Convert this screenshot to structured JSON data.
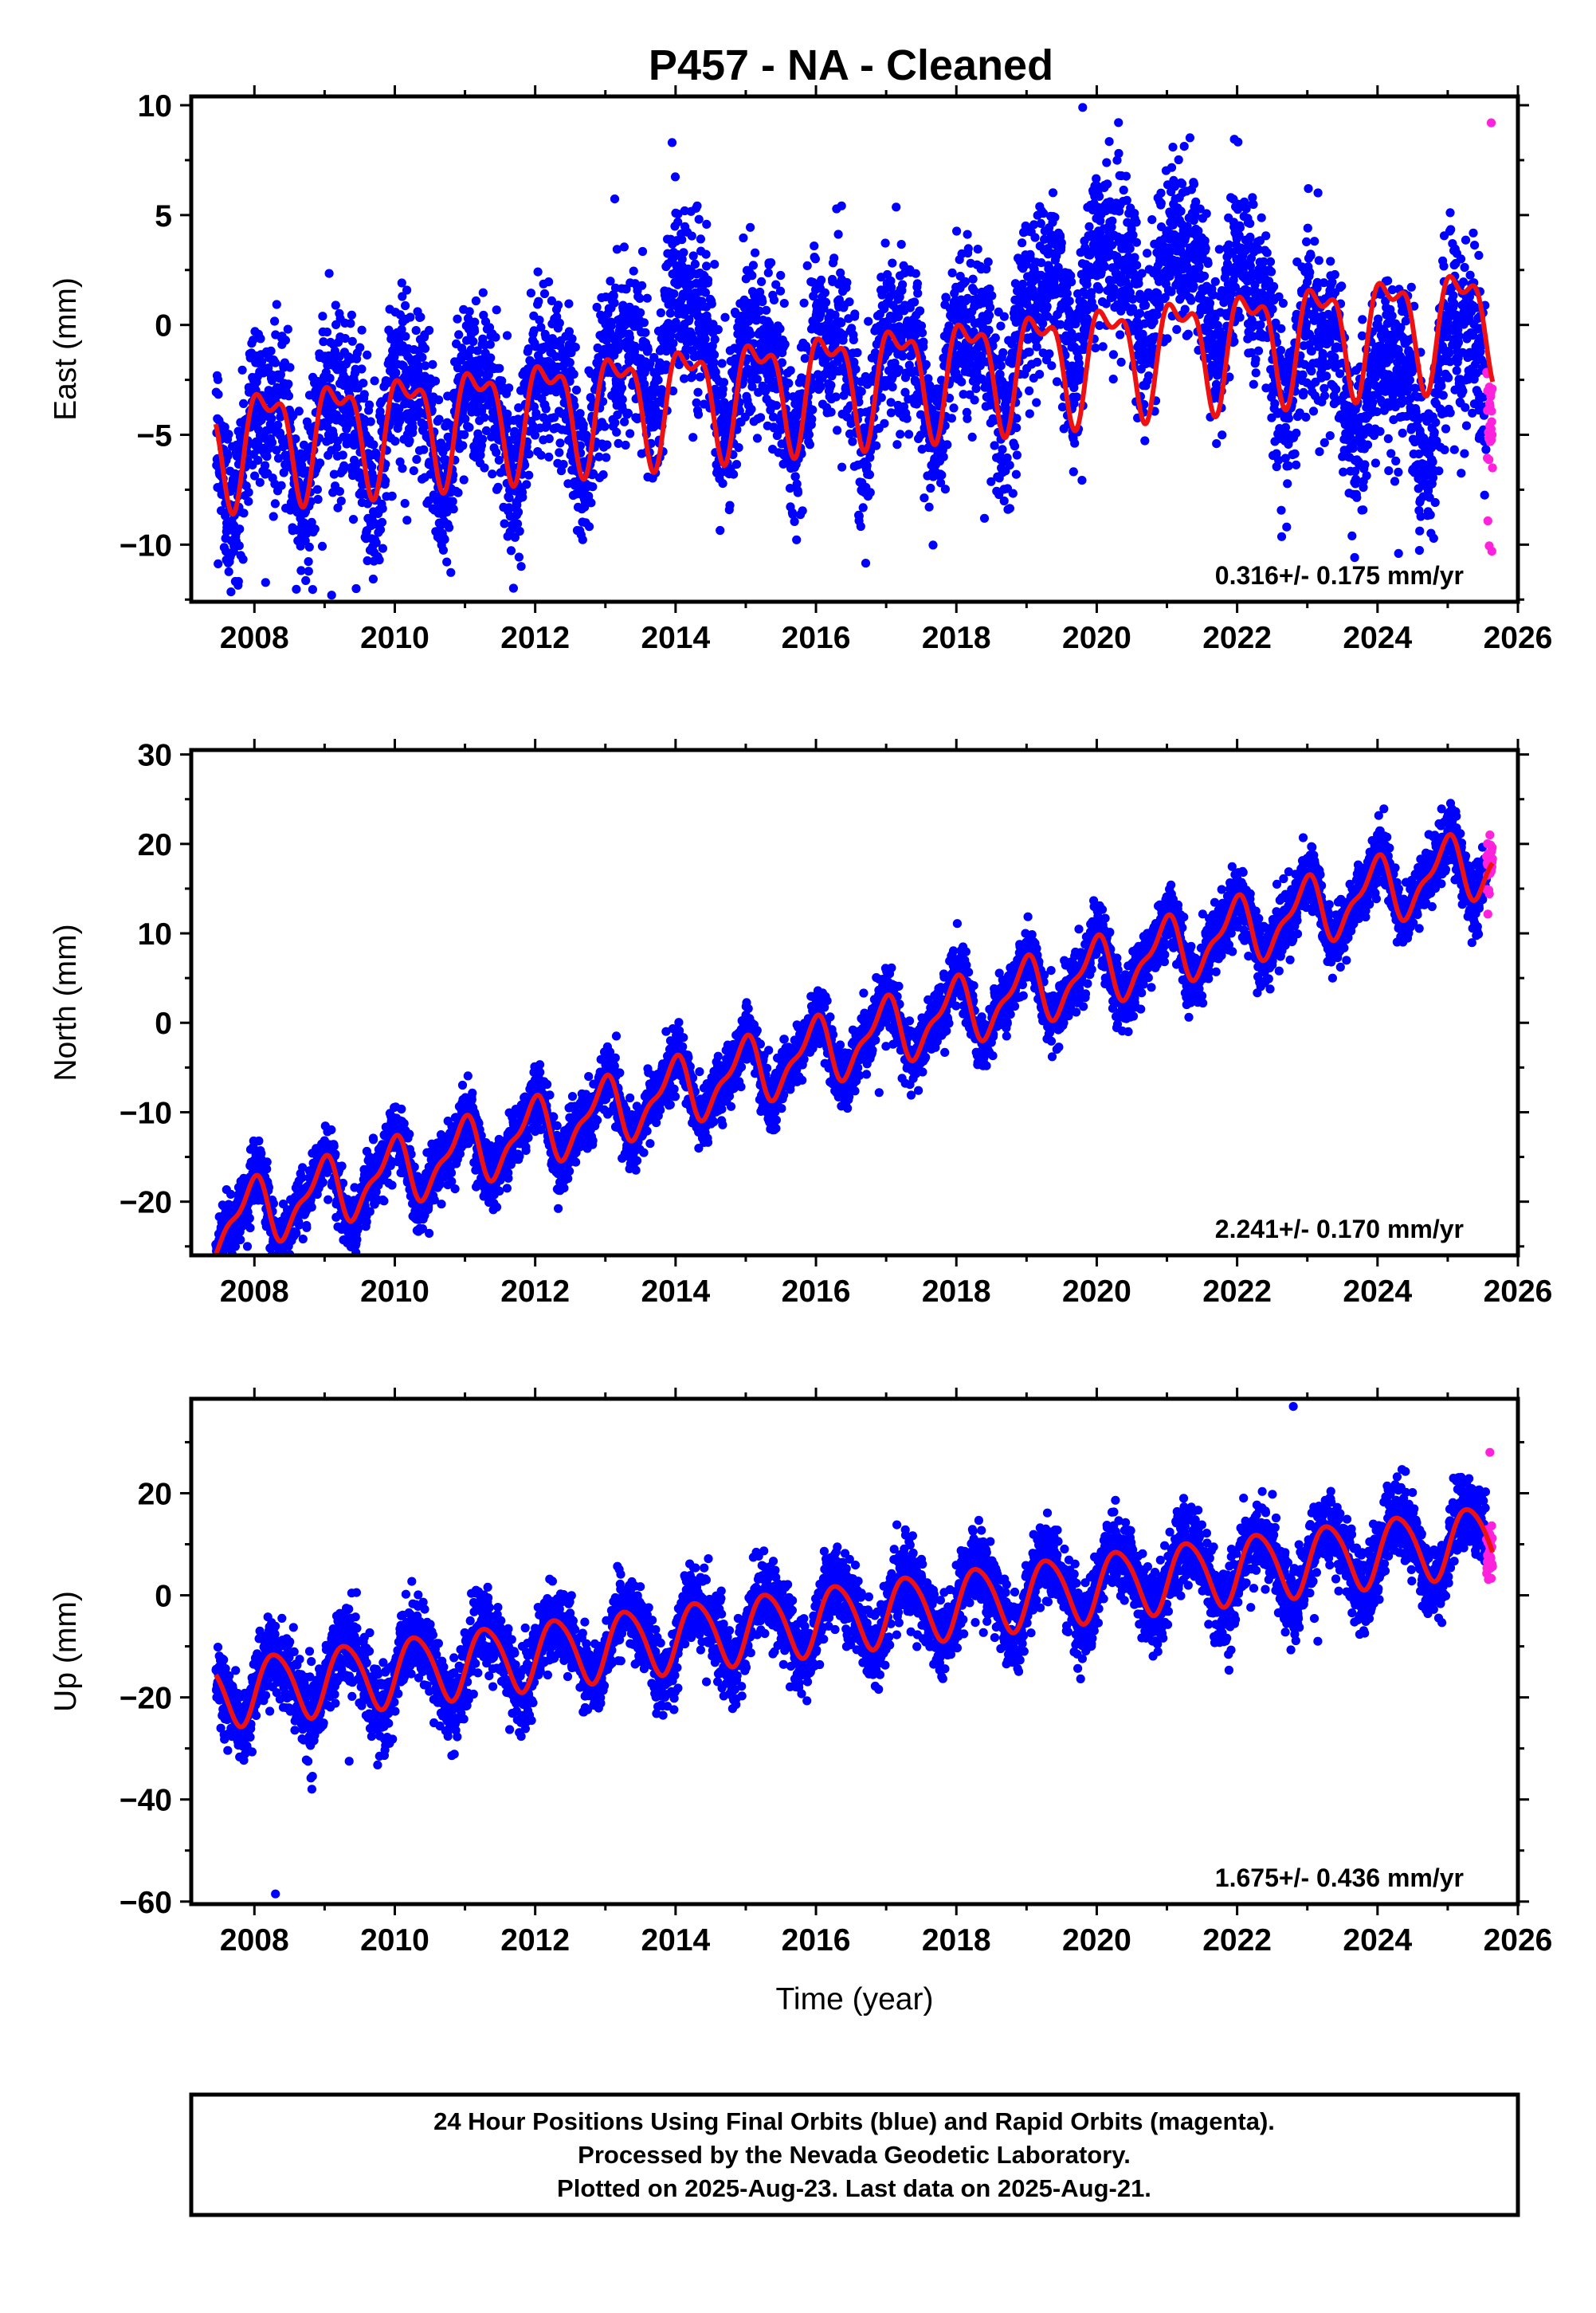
{
  "title": "P457  - NA - Cleaned",
  "footer": {
    "line1": "24 Hour Positions Using Final Orbits (blue) and Rapid Orbits (magenta).",
    "line2": "Processed by the Nevada Geodetic Laboratory.",
    "line3": "Plotted on 2025-Aug-23. Last data on 2025-Aug-21."
  },
  "colors": {
    "final": "#0000ff",
    "rapid": "#ff22dd",
    "model": "#ee1111"
  },
  "chart_data": [
    {
      "type": "scatter",
      "ylabel": "East (mm)",
      "xlabel": "",
      "rate_label": "0.316+/- 0.175 mm/yr",
      "xlim": [
        2007.1,
        2026.0
      ],
      "ylim": [
        -12.6,
        10.4
      ],
      "xticks": [
        2008,
        2010,
        2012,
        2014,
        2016,
        2018,
        2020,
        2022,
        2024,
        2026
      ],
      "yticks": [
        10,
        5,
        0,
        -5,
        -10
      ],
      "data_start": 2007.45,
      "data_end": 2025.64,
      "rapid_start": 2025.55,
      "rate": 0.316,
      "offset": -2.6,
      "ref_year": 2016,
      "annual_amp": 2.3,
      "annual_phase": 0.45,
      "semiannual_amp": 1.1,
      "semiannual_phase": 2.2,
      "noise_sd": 1.9,
      "outliers": [
        [
          2009.1,
          -12.3
        ],
        [
          2009.45,
          -12.0
        ],
        [
          2013.6,
          -5.8
        ],
        [
          2018.4,
          -8.8
        ],
        [
          2024.3,
          -10.4
        ],
        [
          2019.8,
          9.9
        ],
        [
          2013.95,
          8.3
        ],
        [
          2025.62,
          9.2
        ]
      ],
      "residual_anchors": [
        [
          2007.45,
          0
        ],
        [
          2013.0,
          0
        ],
        [
          2013.9,
          3.5
        ],
        [
          2015.0,
          0.5
        ],
        [
          2018.5,
          0
        ],
        [
          2019.5,
          2.5
        ],
        [
          2020.0,
          3.5
        ],
        [
          2021.5,
          3.0
        ],
        [
          2022.0,
          2.0
        ],
        [
          2022.5,
          0
        ],
        [
          2023.3,
          -1.5
        ],
        [
          2024.0,
          -3.0
        ],
        [
          2024.5,
          -3.5
        ],
        [
          2025.0,
          -2.0
        ],
        [
          2025.64,
          -2.5
        ]
      ]
    },
    {
      "type": "scatter",
      "ylabel": "North (mm)",
      "xlabel": "",
      "rate_label": "2.241+/- 0.170 mm/yr",
      "xlim": [
        2007.1,
        2026.0
      ],
      "ylim": [
        -26.0,
        30.5
      ],
      "xticks": [
        2008,
        2010,
        2012,
        2014,
        2016,
        2018,
        2020,
        2022,
        2024,
        2026
      ],
      "yticks": [
        30,
        20,
        10,
        0,
        -10,
        -20
      ],
      "data_start": 2007.45,
      "data_end": 2025.64,
      "rapid_start": 2025.55,
      "rate": 2.241,
      "offset": -3.3,
      "ref_year": 2016,
      "annual_amp": 3.4,
      "annual_phase": 1.85,
      "semiannual_amp": 1.3,
      "semiannual_phase": 0.6,
      "noise_sd": 1.7,
      "outliers": [
        [
          2007.9,
          -25.0
        ],
        [
          2011.6,
          -18.5
        ],
        [
          2016.9,
          -7.8
        ],
        [
          2022.3,
          11.0
        ],
        [
          2025.6,
          21.0
        ]
      ],
      "residual_anchors": [
        [
          2007.45,
          0
        ],
        [
          2025.64,
          0
        ]
      ]
    },
    {
      "type": "scatter",
      "ylabel": "Up (mm)",
      "xlabel": "Time (year)",
      "rate_label": "1.675+/- 0.436 mm/yr",
      "xlim": [
        2007.1,
        2026.0
      ],
      "ylim": [
        -60.5,
        38.5
      ],
      "xticks": [
        2008,
        2010,
        2012,
        2014,
        2016,
        2018,
        2020,
        2022,
        2024,
        2026
      ],
      "yticks": [
        20,
        0,
        -20,
        -40,
        -60
      ],
      "data_start": 2007.45,
      "data_end": 2025.64,
      "rapid_start": 2025.55,
      "rate": 1.675,
      "offset": -4.8,
      "ref_year": 2016,
      "annual_amp": 6.6,
      "annual_phase": -0.3,
      "semiannual_amp": 0.8,
      "semiannual_phase": 0.3,
      "noise_sd": 3.8,
      "outliers": [
        [
          2008.3,
          -58.5
        ],
        [
          2009.35,
          -32.5
        ],
        [
          2023.15,
          -9.0
        ],
        [
          2022.8,
          37.0
        ],
        [
          2025.6,
          28.0
        ]
      ],
      "residual_anchors": [
        [
          2007.45,
          0
        ],
        [
          2025.64,
          0
        ]
      ]
    }
  ]
}
